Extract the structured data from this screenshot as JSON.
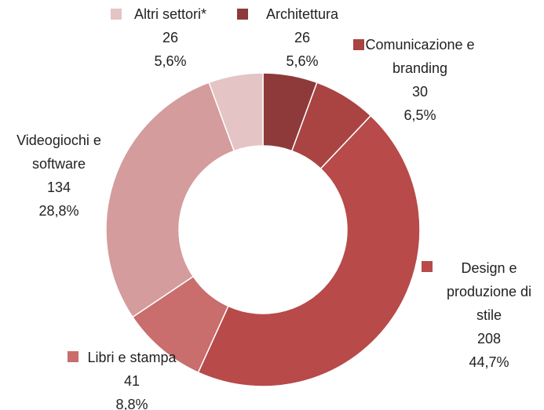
{
  "chart_data": {
    "type": "donut",
    "categories": [
      "Architettura",
      "Comunicazione e branding",
      "Design e produzione di stile",
      "Libri e stampa",
      "Videogiochi e software",
      "Altri settori*"
    ],
    "values": [
      26,
      30,
      208,
      41,
      134,
      26
    ],
    "percent_labels": [
      "5,6%",
      "6,5%",
      "44,7%",
      "8,8%",
      "28,8%",
      "5,6%"
    ],
    "colors": [
      "#8e3a3a",
      "#a94442",
      "#b84a4a",
      "#c96d6d",
      "#d49c9c",
      "#e4c4c4"
    ]
  }
}
